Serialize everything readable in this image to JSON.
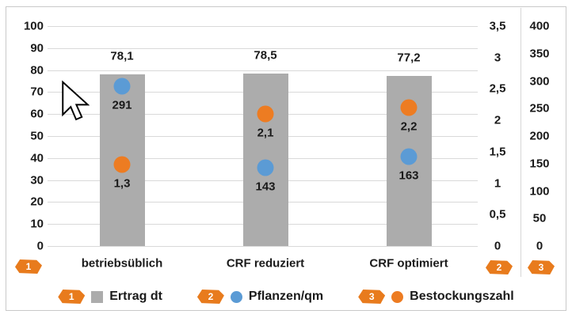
{
  "chart_data": {
    "type": "combo",
    "categories": [
      "betriebsüblich",
      "CRF reduziert",
      "CRF optimiert"
    ],
    "series": [
      {
        "name": "Ertrag dt",
        "type": "bar",
        "axis": "left",
        "color": "#acacac",
        "values": [
          78.1,
          78.5,
          77.2
        ],
        "labels": [
          "78,1",
          "78,5",
          "77,2"
        ],
        "marker": "1"
      },
      {
        "name": "Pflanzen/qm",
        "type": "point",
        "axis": "right_400",
        "color": "#5b9bd5",
        "values": [
          291,
          143,
          163
        ],
        "labels": [
          "291",
          "143",
          "163"
        ],
        "marker": "2"
      },
      {
        "name": "Bestockungszahl",
        "type": "point",
        "axis": "right_35",
        "color": "#ed7c22",
        "values": [
          1.3,
          2.1,
          2.2
        ],
        "labels": [
          "1,3",
          "2,1",
          "2,2"
        ],
        "marker": "3"
      }
    ],
    "axes": {
      "left": {
        "min": 0,
        "max": 100,
        "step": 10,
        "marker": "1",
        "labels": [
          "100",
          "90",
          "80",
          "70",
          "60",
          "50",
          "40",
          "30",
          "20",
          "10",
          "0"
        ]
      },
      "right_35": {
        "min": 0,
        "max": 3.5,
        "step": 0.5,
        "marker": "2",
        "labels": [
          "3,5",
          "3",
          "2,5",
          "2",
          "1,5",
          "1",
          "0,5",
          "0"
        ]
      },
      "right_400": {
        "min": 0,
        "max": 400,
        "step": 50,
        "marker": "3",
        "labels": [
          "400",
          "350",
          "300",
          "250",
          "200",
          "150",
          "100",
          "50",
          "0"
        ]
      }
    },
    "axis_markers": [
      "1",
      "2",
      "3"
    ],
    "legend": [
      {
        "marker": "1",
        "swatch": "square",
        "color": "#acacac",
        "label": "Ertrag dt"
      },
      {
        "marker": "2",
        "swatch": "circle",
        "color": "#5b9bd5",
        "label": "Pflanzen/qm"
      },
      {
        "marker": "3",
        "swatch": "circle",
        "color": "#ed7c22",
        "label": "Bestockungszahl"
      }
    ],
    "grid": true,
    "legend_position": "bottom",
    "title": "",
    "xlabel": "",
    "ylabel": ""
  },
  "colors": {
    "orange": "#ed7c22",
    "badge_orange": "#e87b1d",
    "blue": "#5b9bd5",
    "bar_gray": "#acacac",
    "gridline": "#d9d9d9",
    "text": "#1a1a1a",
    "border": "#c9c9c9"
  }
}
